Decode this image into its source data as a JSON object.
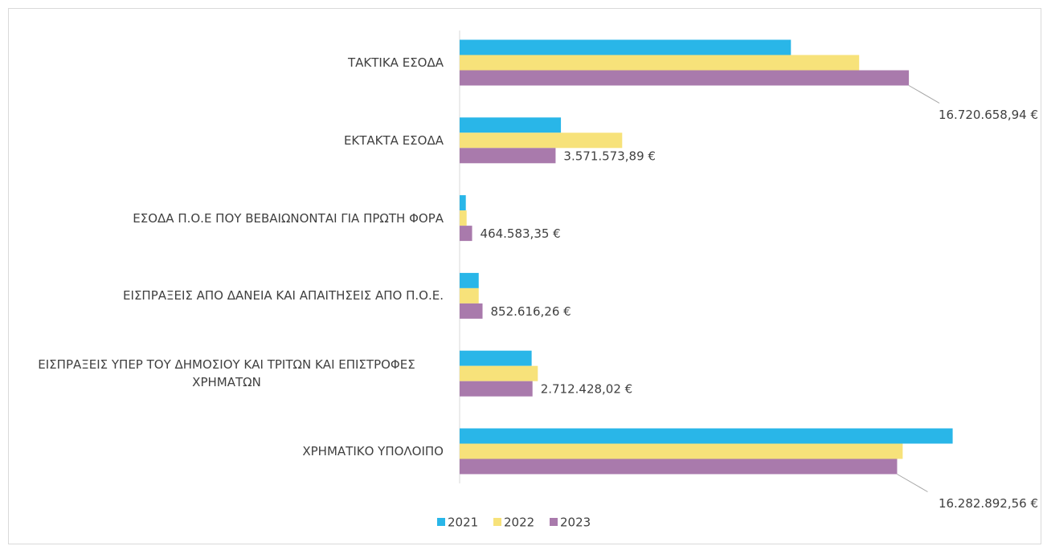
{
  "chart_data": {
    "type": "bar",
    "orientation": "horizontal",
    "categories": [
      "ΤΑΚΤΙΚΑ ΕΣΟΔΑ",
      "ΕΚΤΑΚΤΑ ΕΣΟΔΑ",
      "ΕΣΟΔΑ Π.Ο.Ε ΠΟΥ ΒΕΒΑΙΩΝΟΝΤΑΙ ΓΙΑ ΠΡΩΤΗ ΦΟΡΑ",
      "ΕΙΣΠΡΑΞΕΙΣ ΑΠΟ ΔΑΝΕΙΑ ΚΑΙ ΑΠΑΙΤΗΣΕΙΣ ΑΠΟ Π.Ο.Ε.",
      "ΕΙΣΠΡΑΞΕΙΣ ΥΠΕΡ ΤΟΥ ΔΗΜΟΣΙΟΥ ΚΑΙ ΤΡΙΤΩΝ ΚΑΙ ΕΠΙΣΤΡΟΦΕΣ ΧΡΗΜΑΤΩΝ",
      "ΧΡΗΜΑΤΙΚΟ ΥΠΟΛΟΙΠΟ"
    ],
    "series": [
      {
        "name": "2021",
        "color": "#29b6e8",
        "values": [
          12330000,
          3770000,
          230000,
          710000,
          2680000,
          18350000
        ]
      },
      {
        "name": "2022",
        "color": "#f7e27a",
        "values": [
          14870000,
          6050000,
          260000,
          710000,
          2910000,
          16490000
        ]
      },
      {
        "name": "2023",
        "color": "#a97aac",
        "values": [
          16720658.94,
          3571573.89,
          464583.35,
          852616.26,
          2712428.02,
          16282892.56
        ],
        "value_labels": [
          "16.720.658,94 €",
          "3.571.573,89 €",
          "464.583,35 €",
          "852.616,26 €",
          "2.712.428,02 €",
          "16.282.892,56 €"
        ]
      }
    ],
    "xlim": [
      0,
      19170000
    ],
    "legend": "bottom"
  }
}
